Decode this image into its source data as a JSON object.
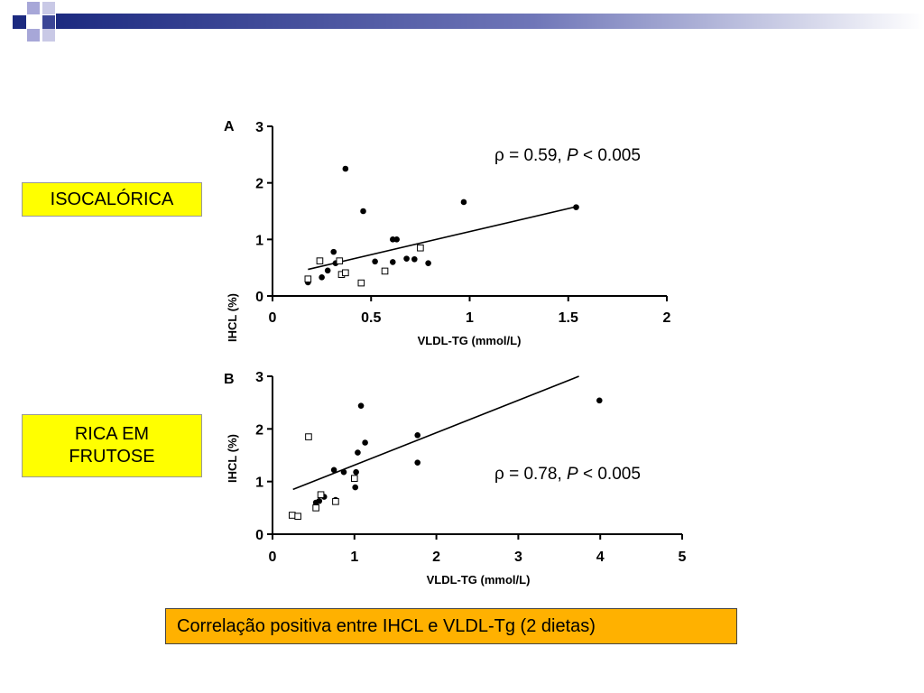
{
  "labels": {
    "iso": "ISOCALÓRICA",
    "rica_line1": "RICA EM",
    "rica_line2": "FRUTOSE"
  },
  "caption": "Correlação positiva entre IHCL e VLDL-Tg (2 dietas)",
  "colors": {
    "label_bg": "#ffff00",
    "caption_bg": "#ffb100",
    "deco_navy": "#1c2a80",
    "deco_lilac": "#a7a7d8"
  },
  "chart_data": [
    {
      "type": "scatter",
      "panel": "A",
      "title": "",
      "xlabel": "VLDL-TG (mmol/L)",
      "ylabel": "IHCL (%)",
      "xlim": [
        0,
        2
      ],
      "ylim": [
        0,
        3
      ],
      "xticks": [
        0,
        0.5,
        1,
        1.5,
        2
      ],
      "xtick_labels": [
        "0",
        "0.5",
        "1",
        "1.5",
        "2"
      ],
      "yticks": [
        0,
        1,
        2,
        3
      ],
      "ytick_labels": [
        "0",
        "1",
        "2",
        "3"
      ],
      "annotation": {
        "rho": "ρ",
        "text": " = 0.59, ",
        "p": "P",
        "rest": " < 0.005"
      },
      "fit_line": {
        "x": [
          0.18,
          1.53
        ],
        "y": [
          0.47,
          1.57
        ]
      },
      "series": [
        {
          "marker": "filled-circle",
          "points": [
            [
              0.18,
              0.24
            ],
            [
              0.25,
              0.33
            ],
            [
              0.28,
              0.45
            ],
            [
              0.31,
              0.78
            ],
            [
              0.32,
              0.58
            ],
            [
              0.37,
              2.25
            ],
            [
              0.46,
              1.5
            ],
            [
              0.52,
              0.61
            ],
            [
              0.61,
              0.6
            ],
            [
              0.61,
              1.0
            ],
            [
              0.63,
              1.0
            ],
            [
              0.68,
              0.66
            ],
            [
              0.72,
              0.65
            ],
            [
              0.79,
              0.58
            ],
            [
              0.97,
              1.66
            ],
            [
              1.54,
              1.57
            ]
          ]
        },
        {
          "marker": "open-square",
          "points": [
            [
              0.18,
              0.3
            ],
            [
              0.24,
              0.62
            ],
            [
              0.34,
              0.62
            ],
            [
              0.35,
              0.38
            ],
            [
              0.37,
              0.41
            ],
            [
              0.45,
              0.23
            ],
            [
              0.57,
              0.44
            ],
            [
              0.75,
              0.85
            ]
          ]
        }
      ]
    },
    {
      "type": "scatter",
      "panel": "B",
      "title": "",
      "xlabel": "VLDL-TG (mmol/L)",
      "ylabel": "IHCL (%)",
      "xlim": [
        0,
        5
      ],
      "ylim": [
        0,
        3
      ],
      "xticks": [
        0,
        1,
        2,
        3,
        4,
        5
      ],
      "xtick_labels": [
        "0",
        "1",
        "2",
        "3",
        "4",
        "5"
      ],
      "yticks": [
        0,
        1,
        2,
        3
      ],
      "ytick_labels": [
        "0",
        "1",
        "2",
        "3"
      ],
      "annotation": {
        "rho": "ρ",
        "text": " = 0.78, ",
        "p": "P",
        "rest": " < 0.005"
      },
      "fit_line": {
        "x": [
          0.25,
          3.74
        ],
        "y": [
          0.85,
          3.0
        ]
      },
      "series": [
        {
          "marker": "filled-circle",
          "points": [
            [
              0.53,
              0.6
            ],
            [
              0.57,
              0.63
            ],
            [
              0.63,
              0.71
            ],
            [
              0.75,
              1.22
            ],
            [
              0.77,
              0.65
            ],
            [
              0.87,
              1.18
            ],
            [
              1.01,
              0.89
            ],
            [
              1.02,
              1.18
            ],
            [
              1.04,
              1.55
            ],
            [
              1.08,
              2.44
            ],
            [
              1.13,
              1.74
            ],
            [
              1.77,
              1.88
            ],
            [
              1.77,
              1.36
            ],
            [
              3.99,
              2.54
            ]
          ]
        },
        {
          "marker": "open-square",
          "points": [
            [
              0.24,
              0.36
            ],
            [
              0.31,
              0.34
            ],
            [
              0.44,
              1.85
            ],
            [
              0.53,
              0.5
            ],
            [
              0.59,
              0.75
            ],
            [
              0.77,
              0.62
            ],
            [
              1.0,
              1.06
            ]
          ]
        }
      ]
    }
  ]
}
